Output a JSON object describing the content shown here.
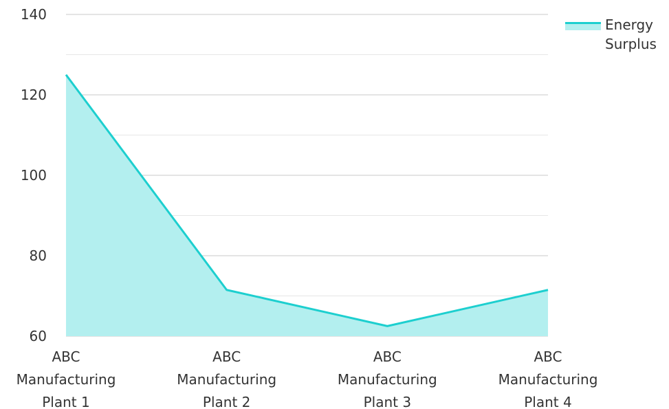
{
  "chart_data": {
    "type": "area",
    "categories": [
      [
        "ABC",
        "Manufacturing",
        "Plant 1"
      ],
      [
        "ABC",
        "Manufacturing",
        "Plant 2"
      ],
      [
        "ABC",
        "Manufacturing",
        "Plant 3"
      ],
      [
        "ABC",
        "Manufacturing",
        "Plant 4"
      ]
    ],
    "series": [
      {
        "name": "Energy Surplus",
        "values": [
          125,
          71.5,
          62.5,
          71.5
        ]
      }
    ],
    "ylim": [
      60,
      140
    ],
    "yticks": [
      60,
      80,
      100,
      120,
      140
    ],
    "grid": true,
    "legend_position": "top-right",
    "colors": {
      "line": "#1dcfcf",
      "fill": "#b3efef",
      "grid_major": "#c8c8c8",
      "grid_minor": "#e6e6e6"
    }
  }
}
